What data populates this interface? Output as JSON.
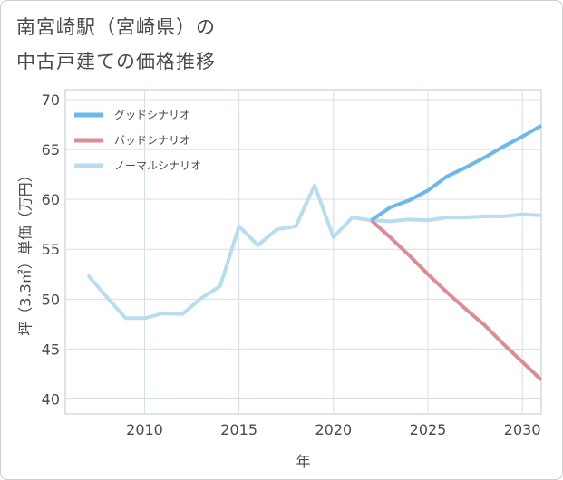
{
  "title_line1": "南宮崎駅（宮崎県）の",
  "title_line2": "中古戸建ての価格推移",
  "chart_data": {
    "type": "line",
    "xlabel": "年",
    "ylabel": "坪（3.3㎡）単価（万円）",
    "xlim": [
      2005.8,
      2031
    ],
    "ylim": [
      38.5,
      71
    ],
    "xticks": [
      2010,
      2015,
      2020,
      2025,
      2030
    ],
    "yticks": [
      40,
      45,
      50,
      55,
      60,
      65,
      70
    ],
    "grid": true,
    "legend_position": "top-left",
    "series": [
      {
        "name": "グッドシナリオ",
        "color": "#6cb8ee",
        "x": [
          2022,
          2023,
          2024,
          2025,
          2026,
          2027,
          2028,
          2029,
          2030,
          2031
        ],
        "y": [
          57.9,
          59.2,
          59.9,
          60.9,
          62.3,
          63.2,
          64.2,
          65.3,
          66.3,
          67.4
        ]
      },
      {
        "name": "バッドシナリオ",
        "color": "#de8c93",
        "x": [
          2022,
          2023,
          2024,
          2025,
          2026,
          2027,
          2028,
          2029,
          2030,
          2031
        ],
        "y": [
          57.9,
          56.2,
          54.4,
          52.5,
          50.7,
          49.0,
          47.4,
          45.5,
          43.7,
          41.9
        ]
      },
      {
        "name": "ノーマルシナリオ",
        "color": "#b7ddee",
        "x": [
          2007,
          2008,
          2009,
          2010,
          2011,
          2012,
          2013,
          2014,
          2015,
          2016,
          2017,
          2018,
          2019,
          2020,
          2021,
          2022,
          2023,
          2024,
          2025,
          2026,
          2027,
          2028,
          2029,
          2030,
          2031
        ],
        "y": [
          52.4,
          50.2,
          48.1,
          48.1,
          48.6,
          48.5,
          50.1,
          51.3,
          57.3,
          55.4,
          57.0,
          57.3,
          61.4,
          56.2,
          58.2,
          57.9,
          57.8,
          58.0,
          57.9,
          58.2,
          58.2,
          58.3,
          58.3,
          58.5,
          58.4
        ]
      }
    ]
  }
}
